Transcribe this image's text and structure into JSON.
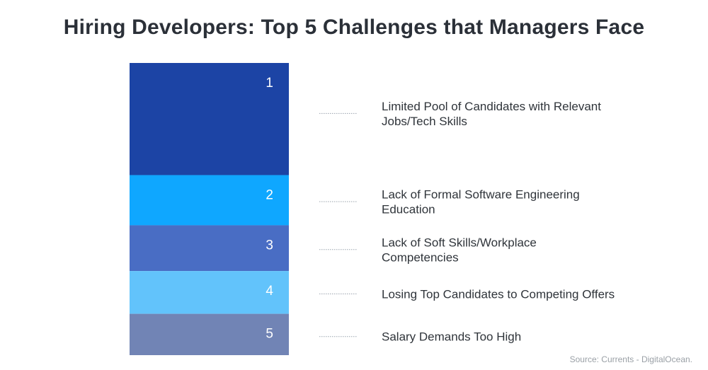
{
  "chart_data": {
    "type": "bar",
    "stacked": true,
    "title": "Hiring Developers: Top 5 Challenges that Managers Face",
    "source": "Source: Currents - DigitalOcean.",
    "items": [
      {
        "rank": "1",
        "label_lines": [
          "Limited Pool of Candidates with Relevant",
          "Jobs/Tech Skills"
        ],
        "value": 38,
        "color": "#1c44a5"
      },
      {
        "rank": "2",
        "label_lines": [
          "Lack of Formal Software Engineering",
          "Education"
        ],
        "value": 17,
        "color": "#0fa7ff"
      },
      {
        "rank": "3",
        "label_lines": [
          "Lack of Soft Skills/Workplace",
          "Competencies"
        ],
        "value": 15.5,
        "color": "#496dc4"
      },
      {
        "rank": "4",
        "label_lines": [
          "Losing Top Candidates to Competing Offers"
        ],
        "value": 14.5,
        "color": "#62c3fb"
      },
      {
        "rank": "5",
        "label_lines": [
          "Salary Demands Too High"
        ],
        "value": 14,
        "color": "#7184b5"
      }
    ]
  }
}
